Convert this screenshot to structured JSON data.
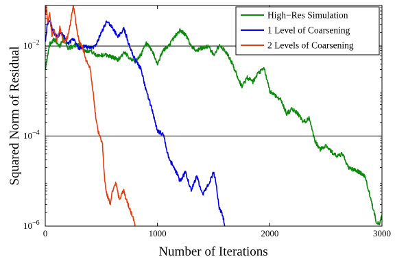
{
  "chart_data": {
    "type": "line",
    "xlabel": "Number of Iterations",
    "ylabel": "Squared Norm of Residual",
    "xlim": [
      0,
      3000
    ],
    "ylim_log10": [
      -6,
      -1.1
    ],
    "yscale": "log",
    "x_ticks": [
      0,
      1000,
      2000,
      3000
    ],
    "x_tick_labels": [
      "0",
      "1000",
      "2000",
      "3000"
    ],
    "y_ticks_log10": [
      -6,
      -4,
      -2
    ],
    "y_tick_labels": [
      {
        "base": "10",
        "exp": "−6"
      },
      {
        "base": "10",
        "exp": "−4"
      },
      {
        "base": "10",
        "exp": "−2"
      }
    ],
    "hlines_log10": [
      -2,
      -4
    ],
    "legend_position": "top-right",
    "series": [
      {
        "name": "High−Res Simulation",
        "color": "#0a8a0a",
        "x": [
          0,
          20,
          40,
          60,
          80,
          100,
          130,
          160,
          200,
          260,
          300,
          350,
          400,
          450,
          500,
          550,
          600,
          650,
          700,
          750,
          800,
          850,
          900,
          950,
          1000,
          1050,
          1100,
          1150,
          1200,
          1250,
          1300,
          1350,
          1400,
          1450,
          1500,
          1550,
          1600,
          1650,
          1700,
          1750,
          1800,
          1850,
          1900,
          1950,
          2000,
          2050,
          2100,
          2150,
          2200,
          2250,
          2300,
          2350,
          2400,
          2450,
          2500,
          2550,
          2600,
          2650,
          2700,
          2750,
          2800,
          2850,
          2900,
          2950,
          2980,
          3000
        ],
        "y_log10": [
          -2.5,
          -2.25,
          -1.95,
          -1.9,
          -1.85,
          -1.95,
          -2.0,
          -1.8,
          -2.05,
          -2.0,
          -1.95,
          -2.1,
          -2.1,
          -2.2,
          -2.2,
          -2.2,
          -2.25,
          -2.3,
          -2.15,
          -2.25,
          -2.35,
          -2.2,
          -1.95,
          -2.1,
          -2.4,
          -2.1,
          -2.0,
          -1.8,
          -1.65,
          -1.75,
          -2.0,
          -2.1,
          -2.05,
          -2.0,
          -2.2,
          -2.0,
          -2.1,
          -2.3,
          -2.6,
          -2.9,
          -2.7,
          -2.8,
          -2.6,
          -2.5,
          -3.0,
          -3.1,
          -3.2,
          -3.5,
          -3.4,
          -3.5,
          -3.7,
          -3.6,
          -4.1,
          -4.3,
          -4.2,
          -4.35,
          -4.45,
          -4.4,
          -4.7,
          -4.75,
          -4.8,
          -4.9,
          -5.4,
          -5.9,
          -5.95,
          -5.75
        ]
      },
      {
        "name": "1 Level of Coarsening",
        "color": "#0000e6",
        "x": [
          0,
          20,
          40,
          60,
          100,
          150,
          200,
          250,
          300,
          350,
          400,
          450,
          500,
          550,
          600,
          650,
          700,
          750,
          800,
          850,
          900,
          950,
          1000,
          1050,
          1100,
          1150,
          1200,
          1250,
          1300,
          1350,
          1400,
          1450,
          1500,
          1520,
          1550,
          1580,
          1600
        ],
        "y_log10": [
          -1.9,
          -1.5,
          -1.4,
          -1.6,
          -1.8,
          -1.7,
          -1.95,
          -1.85,
          -2.05,
          -2.0,
          -2.05,
          -2.0,
          -1.7,
          -1.45,
          -1.6,
          -1.8,
          -1.6,
          -2.0,
          -2.3,
          -2.5,
          -3.0,
          -3.4,
          -3.9,
          -3.95,
          -4.5,
          -4.7,
          -5.0,
          -4.8,
          -5.2,
          -4.9,
          -5.3,
          -5.1,
          -4.8,
          -5.0,
          -5.6,
          -5.75,
          -6.0
        ]
      },
      {
        "name": "2 Levels of Coarsening",
        "color": "#e63c0a",
        "x": [
          0,
          10,
          20,
          40,
          60,
          80,
          100,
          130,
          160,
          200,
          230,
          250,
          280,
          300,
          330,
          360,
          400,
          430,
          450,
          470,
          490,
          510,
          530,
          550,
          580,
          600,
          630,
          660,
          700,
          720,
          750,
          780,
          800
        ],
        "y_log10": [
          -1.3,
          -1.1,
          -1.5,
          -1.3,
          -1.8,
          -1.6,
          -1.9,
          -1.6,
          -1.9,
          -1.8,
          -1.4,
          -1.1,
          -1.6,
          -1.9,
          -2.0,
          -2.3,
          -2.5,
          -3.1,
          -3.6,
          -3.9,
          -4.0,
          -4.2,
          -5.0,
          -5.3,
          -5.5,
          -5.2,
          -5.05,
          -5.4,
          -5.2,
          -5.4,
          -5.6,
          -5.8,
          -6.0
        ]
      }
    ]
  }
}
